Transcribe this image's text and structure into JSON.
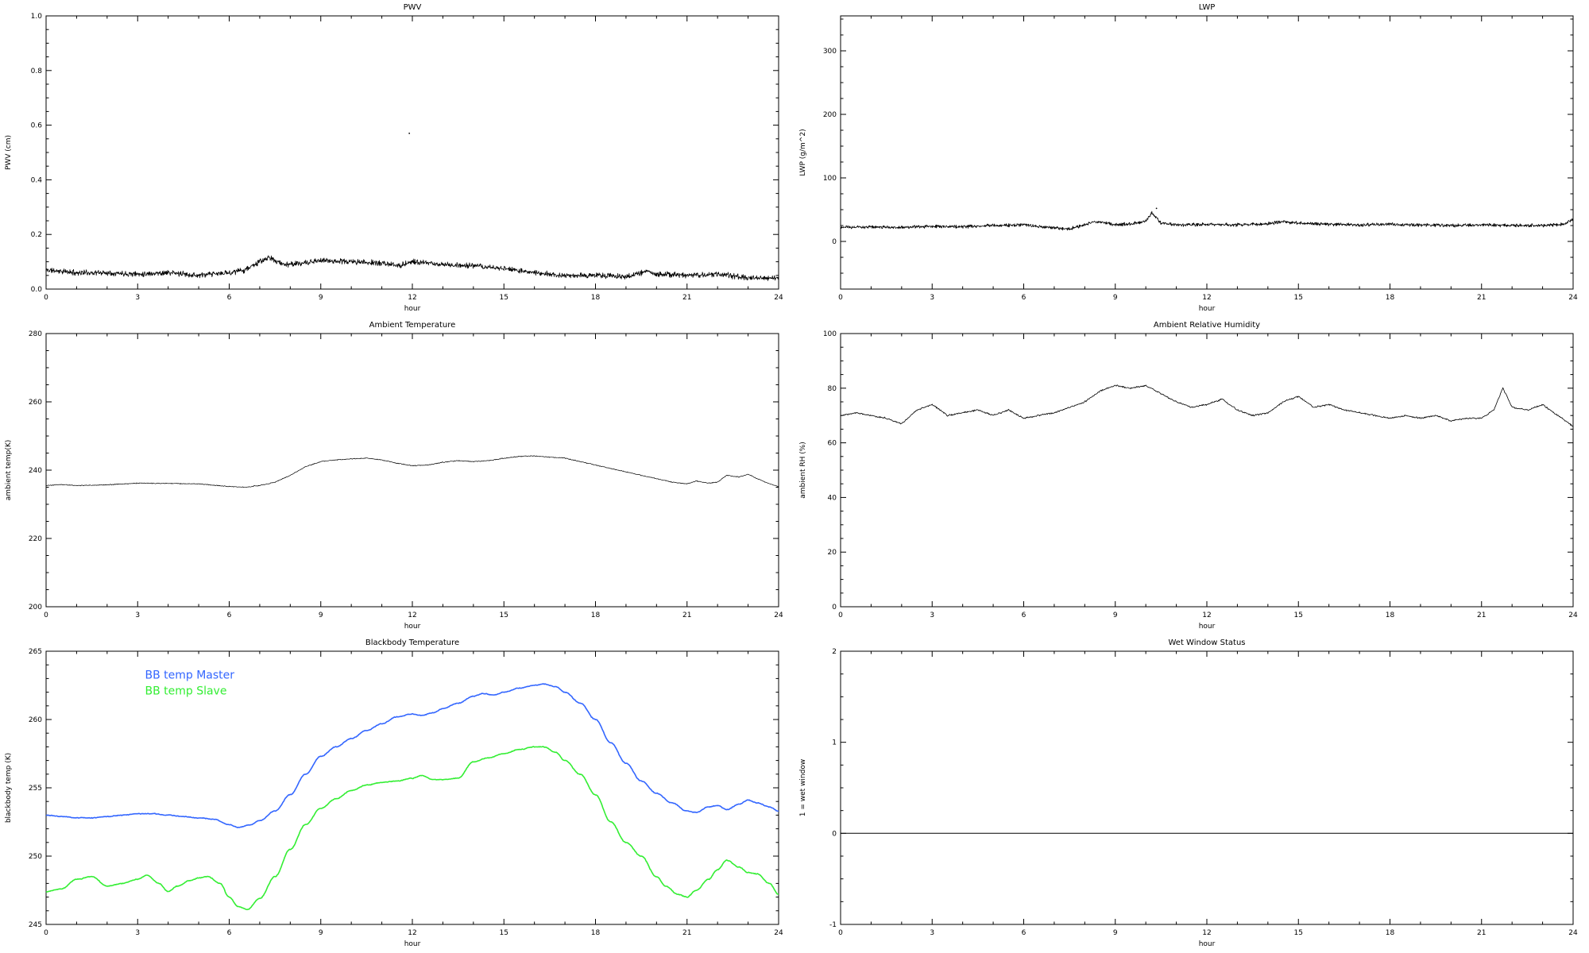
{
  "page": {
    "background": "#ffffff"
  },
  "colors": {
    "axis": "#000000",
    "bb_master": "#3366ff",
    "bb_slave": "#33ee33"
  },
  "chart_data": [
    {
      "type": "line",
      "title": "PWV",
      "xlabel": "hour",
      "ylabel": "PWV (cm)",
      "xlim": [
        0,
        24
      ],
      "ylim": [
        0,
        1.0
      ],
      "xticks": [
        0,
        3,
        6,
        9,
        12,
        15,
        18,
        21,
        24
      ],
      "xticklabels": [
        "0",
        "3",
        "6",
        "9",
        "12",
        "15",
        "18",
        "21",
        "24"
      ],
      "yticks": [
        0,
        0.2,
        0.4,
        0.6,
        0.8,
        1.0
      ],
      "yticklabels": [
        "0.0",
        "0.2",
        "0.4",
        "0.6",
        "0.8",
        "1.0"
      ],
      "xminor": 3,
      "yminor": 4,
      "grid": false,
      "outliers": [
        [
          11.9,
          0.57
        ]
      ],
      "series": [
        {
          "name": "PWV",
          "color": "#000000",
          "width": 0.8,
          "noise": 0.012,
          "samples": 2000,
          "seed": 11,
          "smooth": false,
          "x": [
            0,
            1,
            2,
            3,
            4,
            5,
            6,
            6.5,
            7,
            7.3,
            7.8,
            8.5,
            9,
            10,
            11,
            11.5,
            12,
            12.5,
            13,
            14,
            15,
            16,
            17,
            18,
            19,
            19.7,
            20,
            21,
            22,
            23,
            24
          ],
          "values": [
            0.07,
            0.06,
            0.06,
            0.055,
            0.06,
            0.05,
            0.06,
            0.07,
            0.1,
            0.115,
            0.09,
            0.095,
            0.105,
            0.1,
            0.095,
            0.085,
            0.1,
            0.095,
            0.09,
            0.085,
            0.075,
            0.06,
            0.05,
            0.05,
            0.045,
            0.065,
            0.055,
            0.05,
            0.055,
            0.04,
            0.04
          ]
        }
      ]
    },
    {
      "type": "line",
      "title": "LWP",
      "xlabel": "hour",
      "ylabel": "LWP (g/m^2)",
      "xlim": [
        0,
        24
      ],
      "ylim": [
        -75,
        355
      ],
      "xticks": [
        0,
        3,
        6,
        9,
        12,
        15,
        18,
        21,
        24
      ],
      "xticklabels": [
        "0",
        "3",
        "6",
        "9",
        "12",
        "15",
        "18",
        "21",
        "24"
      ],
      "yticks": [
        0,
        100,
        200,
        300
      ],
      "yticklabels": [
        "0",
        "100",
        "200",
        "300"
      ],
      "xminor": 3,
      "yminor": 4,
      "grid": false,
      "outliers": [
        [
          10.35,
          52
        ]
      ],
      "series": [
        {
          "name": "LWP",
          "color": "#000000",
          "width": 0.8,
          "noise": 3,
          "samples": 2000,
          "seed": 23,
          "smooth": false,
          "x": [
            0,
            1,
            2,
            3,
            4,
            5,
            6,
            7,
            7.5,
            8,
            8.3,
            8.7,
            9,
            9.5,
            10,
            10.2,
            10.5,
            11,
            12,
            13,
            14,
            14.5,
            15,
            16,
            17,
            18,
            19,
            20,
            21,
            22,
            23,
            23.7,
            24
          ],
          "values": [
            22,
            23,
            22,
            24,
            23,
            25,
            26,
            21,
            20,
            26,
            32,
            29,
            26,
            28,
            32,
            45,
            29,
            26,
            27,
            26,
            28,
            31,
            29,
            27,
            26,
            27,
            26,
            25,
            26,
            25,
            25,
            27,
            34
          ]
        }
      ]
    },
    {
      "type": "line",
      "title": "Ambient Temperature",
      "xlabel": "hour",
      "ylabel": "ambient temp(K)",
      "xlim": [
        0,
        24
      ],
      "ylim": [
        200,
        280
      ],
      "xticks": [
        0,
        3,
        6,
        9,
        12,
        15,
        18,
        21,
        24
      ],
      "xticklabels": [
        "0",
        "3",
        "6",
        "9",
        "12",
        "15",
        "18",
        "21",
        "24"
      ],
      "yticks": [
        200,
        220,
        240,
        260,
        280
      ],
      "yticklabels": [
        "200",
        "220",
        "240",
        "260",
        "280"
      ],
      "xminor": 3,
      "yminor": 4,
      "grid": false,
      "series": [
        {
          "name": "ambient temp",
          "color": "#000000",
          "width": 0.7,
          "noise": 0.15,
          "samples": 1400,
          "seed": 5,
          "smooth": false,
          "x": [
            0,
            0.5,
            1,
            2,
            3,
            4,
            5,
            6,
            6.5,
            7,
            7.5,
            8,
            8.5,
            9,
            9.5,
            10,
            10.5,
            11,
            11.5,
            12,
            12.5,
            13,
            13.5,
            14,
            14.5,
            15,
            15.5,
            16,
            16.5,
            17,
            17.5,
            18,
            19,
            20,
            20.5,
            21,
            21.3,
            21.7,
            22,
            22.3,
            22.7,
            23,
            23.3,
            23.7,
            24
          ],
          "values": [
            235.5,
            235.8,
            235.5,
            235.7,
            236.2,
            236.1,
            236.0,
            235.2,
            235.0,
            235.5,
            236.5,
            238.5,
            241.0,
            242.5,
            243.0,
            243.3,
            243.5,
            243.0,
            242.0,
            241.3,
            241.5,
            242.3,
            242.8,
            242.5,
            242.8,
            243.5,
            244.0,
            244.2,
            243.8,
            243.5,
            242.5,
            241.5,
            239.5,
            237.5,
            236.5,
            236.0,
            236.8,
            236.2,
            236.5,
            238.5,
            238.0,
            238.8,
            237.5,
            236.0,
            235.2
          ]
        }
      ]
    },
    {
      "type": "line",
      "title": "Ambient Relative Humidity",
      "xlabel": "hour",
      "ylabel": "ambient RH (%)",
      "xlim": [
        0,
        24
      ],
      "ylim": [
        0,
        100
      ],
      "xticks": [
        0,
        3,
        6,
        9,
        12,
        15,
        18,
        21,
        24
      ],
      "xticklabels": [
        "0",
        "3",
        "6",
        "9",
        "12",
        "15",
        "18",
        "21",
        "24"
      ],
      "yticks": [
        0,
        20,
        40,
        60,
        80,
        100
      ],
      "yticklabels": [
        "0",
        "20",
        "40",
        "60",
        "80",
        "100"
      ],
      "xminor": 3,
      "yminor": 4,
      "grid": false,
      "series": [
        {
          "name": "ambient RH",
          "color": "#000000",
          "width": 0.8,
          "noise": 0.35,
          "samples": 1200,
          "seed": 17,
          "smooth": false,
          "x": [
            0,
            0.5,
            1,
            1.5,
            2,
            2.5,
            3,
            3.5,
            4,
            4.5,
            5,
            5.5,
            6,
            6.5,
            7,
            7.5,
            8,
            8.5,
            9,
            9.5,
            10,
            10.5,
            11,
            11.5,
            12,
            12.5,
            13,
            13.5,
            14,
            14.5,
            15,
            15.5,
            16,
            16.5,
            17,
            17.5,
            18,
            18.5,
            19,
            19.5,
            20,
            20.5,
            21,
            21.4,
            21.7,
            22,
            22.5,
            23,
            23.5,
            24
          ],
          "values": [
            70,
            71,
            70,
            69,
            67,
            72,
            74,
            70,
            71,
            72,
            70,
            72,
            69,
            70,
            71,
            73,
            75,
            79,
            81,
            80,
            81,
            78,
            75,
            73,
            74,
            76,
            72,
            70,
            71,
            75,
            77,
            73,
            74,
            72,
            71,
            70,
            69,
            70,
            69,
            70,
            68,
            69,
            69,
            72,
            80,
            73,
            72,
            74,
            70,
            66
          ]
        }
      ]
    },
    {
      "type": "line",
      "title": "Blackbody Temperature",
      "xlabel": "hour",
      "ylabel": "blackbody temp (K)",
      "xlim": [
        0,
        24
      ],
      "ylim": [
        245,
        265
      ],
      "xticks": [
        0,
        3,
        6,
        9,
        12,
        15,
        18,
        21,
        24
      ],
      "xticklabels": [
        "0",
        "3",
        "6",
        "9",
        "12",
        "15",
        "18",
        "21",
        "24"
      ],
      "yticks": [
        245,
        250,
        255,
        260,
        265
      ],
      "yticklabels": [
        "245",
        "250",
        "255",
        "260",
        "265"
      ],
      "xminor": 3,
      "yminor": 5,
      "grid": false,
      "legend": {
        "x": 0.135,
        "y": 0.1,
        "dy": 0.058,
        "size": 14,
        "position": "top-left"
      },
      "series": [
        {
          "name": "BB temp Master",
          "color": "#3366ff",
          "width": 1.6,
          "noise": 0.03,
          "samples": 900,
          "seed": 3,
          "smooth": true,
          "x": [
            0,
            0.5,
            1,
            1.5,
            2,
            2.5,
            3,
            3.5,
            4,
            4.5,
            5,
            5.5,
            6,
            6.3,
            6.7,
            7,
            7.5,
            8,
            8.5,
            9,
            9.5,
            10,
            10.5,
            11,
            11.5,
            12,
            12.3,
            12.7,
            13,
            13.5,
            14,
            14.3,
            14.7,
            15,
            15.5,
            16,
            16.3,
            16.7,
            17,
            17.5,
            18,
            18.5,
            19,
            19.5,
            20,
            20.5,
            21,
            21.3,
            21.7,
            22,
            22.3,
            22.7,
            23,
            23.3,
            23.7,
            24
          ],
          "values": [
            253.0,
            252.9,
            252.8,
            252.8,
            252.9,
            253.0,
            253.1,
            253.1,
            253.0,
            252.9,
            252.8,
            252.7,
            252.3,
            252.1,
            252.3,
            252.6,
            253.3,
            254.5,
            256.0,
            257.3,
            258.0,
            258.6,
            259.2,
            259.7,
            260.2,
            260.4,
            260.3,
            260.5,
            260.8,
            261.2,
            261.7,
            261.9,
            261.8,
            262.0,
            262.3,
            262.5,
            262.6,
            262.4,
            262.0,
            261.2,
            260.0,
            258.3,
            256.8,
            255.5,
            254.6,
            253.9,
            253.3,
            253.2,
            253.6,
            253.7,
            253.4,
            253.8,
            254.1,
            253.9,
            253.6,
            253.3
          ]
        },
        {
          "name": "BB temp Slave",
          "color": "#33ee33",
          "width": 1.6,
          "noise": 0.03,
          "samples": 900,
          "seed": 4,
          "smooth": true,
          "x": [
            0,
            0.5,
            1,
            1.5,
            2,
            2.5,
            3,
            3.3,
            3.7,
            4,
            4.3,
            4.7,
            5,
            5.3,
            5.7,
            6,
            6.3,
            6.6,
            7,
            7.5,
            8,
            8.5,
            9,
            9.5,
            10,
            10.5,
            11,
            11.5,
            12,
            12.3,
            12.7,
            13,
            13.5,
            14,
            14.5,
            15,
            15.5,
            16,
            16.3,
            16.7,
            17,
            17.5,
            18,
            18.5,
            19,
            19.5,
            20,
            20.3,
            20.7,
            21,
            21.3,
            21.7,
            22,
            22.3,
            22.7,
            23,
            23.3,
            23.7,
            24
          ],
          "values": [
            247.4,
            247.6,
            248.3,
            248.5,
            247.8,
            248.0,
            248.3,
            248.6,
            248.0,
            247.4,
            247.8,
            248.2,
            248.4,
            248.5,
            248.0,
            247.0,
            246.3,
            246.1,
            246.9,
            248.5,
            250.5,
            252.3,
            253.5,
            254.2,
            254.8,
            255.2,
            255.4,
            255.5,
            255.7,
            255.9,
            255.6,
            255.6,
            255.7,
            256.9,
            257.2,
            257.5,
            257.8,
            258.0,
            258.0,
            257.6,
            257.0,
            256.0,
            254.5,
            252.5,
            251.0,
            250.0,
            248.5,
            247.8,
            247.2,
            247.0,
            247.5,
            248.3,
            249.0,
            249.7,
            249.2,
            248.8,
            248.7,
            248.0,
            247.2
          ]
        }
      ]
    },
    {
      "type": "line",
      "title": "Wet Window Status",
      "xlabel": "hour",
      "ylabel": "1 = wet window",
      "xlim": [
        0,
        24
      ],
      "ylim": [
        -1,
        2
      ],
      "xticks": [
        0,
        3,
        6,
        9,
        12,
        15,
        18,
        21,
        24
      ],
      "xticklabels": [
        "0",
        "3",
        "6",
        "9",
        "12",
        "15",
        "18",
        "21",
        "24"
      ],
      "yticks": [
        -1,
        0,
        1,
        2
      ],
      "yticklabels": [
        "-1",
        "0",
        "1",
        "2"
      ],
      "xminor": 3,
      "yminor": 4,
      "grid": false,
      "series": [
        {
          "name": "wet window flag",
          "color": "#000000",
          "width": 1,
          "smooth": false,
          "x": [
            0,
            24
          ],
          "values": [
            0,
            0
          ]
        }
      ]
    }
  ]
}
